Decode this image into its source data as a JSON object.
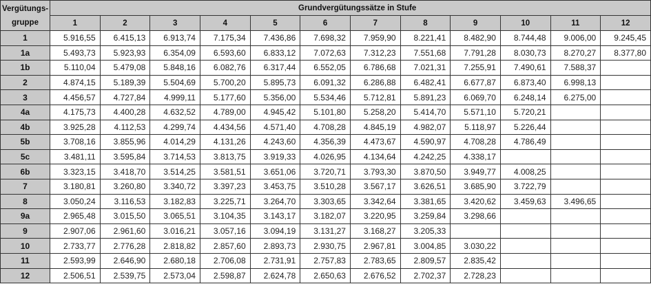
{
  "table": {
    "corner_header": [
      "Vergütungs-",
      "gruppe"
    ],
    "group_header": "Grundvergütungssätze in Stufe",
    "stufen": [
      "1",
      "2",
      "3",
      "4",
      "5",
      "6",
      "7",
      "8",
      "9",
      "10",
      "11",
      "12"
    ],
    "rows": [
      {
        "gruppe": "1",
        "values": [
          "5.916,55",
          "6.415,13",
          "6.913,74",
          "7.175,34",
          "7.436,86",
          "7.698,32",
          "7.959,90",
          "8.221,41",
          "8.482,90",
          "8.744,48",
          "9.006,00",
          "9.245,45"
        ]
      },
      {
        "gruppe": "1a",
        "values": [
          "5.493,73",
          "5.923,93",
          "6.354,09",
          "6.593,60",
          "6.833,12",
          "7.072,63",
          "7.312,23",
          "7.551,68",
          "7.791,28",
          "8.030,73",
          "8.270,27",
          "8.377,80"
        ]
      },
      {
        "gruppe": "1b",
        "values": [
          "5.110,04",
          "5.479,08",
          "5.848,16",
          "6.082,76",
          "6.317,44",
          "6.552,05",
          "6.786,68",
          "7.021,31",
          "7.255,91",
          "7.490,61",
          "7.588,37",
          ""
        ]
      },
      {
        "gruppe": "2",
        "values": [
          "4.874,15",
          "5.189,39",
          "5.504,69",
          "5.700,20",
          "5.895,73",
          "6.091,32",
          "6.286,88",
          "6.482,41",
          "6.677,87",
          "6.873,40",
          "6.998,13",
          ""
        ]
      },
      {
        "gruppe": "3",
        "values": [
          "4.456,57",
          "4.727,84",
          "4.999,11",
          "5.177,60",
          "5.356,00",
          "5.534,46",
          "5.712,81",
          "5.891,23",
          "6.069,70",
          "6.248,14",
          "6.275,00",
          ""
        ]
      },
      {
        "gruppe": "4a",
        "values": [
          "4.175,73",
          "4.400,28",
          "4.632,52",
          "4.789,00",
          "4.945,42",
          "5.101,80",
          "5.258,20",
          "5.414,70",
          "5.571,10",
          "5.720,21",
          "",
          ""
        ]
      },
      {
        "gruppe": "4b",
        "values": [
          "3.925,28",
          "4.112,53",
          "4.299,74",
          "4.434,56",
          "4.571,40",
          "4.708,28",
          "4.845,19",
          "4.982,07",
          "5.118,97",
          "5.226,44",
          "",
          ""
        ]
      },
      {
        "gruppe": "5b",
        "values": [
          "3.708,16",
          "3.855,96",
          "4.014,29",
          "4.131,26",
          "4.243,60",
          "4.356,39",
          "4.473,67",
          "4.590,97",
          "4.708,28",
          "4.786,49",
          "",
          ""
        ]
      },
      {
        "gruppe": "5c",
        "values": [
          "3.481,11",
          "3.595,84",
          "3.714,53",
          "3.813,75",
          "3.919,33",
          "4.026,95",
          "4.134,64",
          "4.242,25",
          "4.338,17",
          "",
          "",
          ""
        ]
      },
      {
        "gruppe": "6b",
        "values": [
          "3.323,15",
          "3.418,70",
          "3.514,25",
          "3.581,51",
          "3.651,06",
          "3.720,71",
          "3.793,30",
          "3.870,50",
          "3.949,77",
          "4.008,25",
          "",
          ""
        ]
      },
      {
        "gruppe": "7",
        "values": [
          "3.180,81",
          "3.260,80",
          "3.340,72",
          "3.397,23",
          "3.453,75",
          "3.510,28",
          "3.567,17",
          "3.626,51",
          "3.685,90",
          "3.722,79",
          "",
          ""
        ]
      },
      {
        "gruppe": "8",
        "values": [
          "3.050,24",
          "3.116,53",
          "3.182,83",
          "3.225,71",
          "3.264,70",
          "3.303,65",
          "3.342,64",
          "3.381,65",
          "3.420,62",
          "3.459,63",
          "3.496,65",
          ""
        ]
      },
      {
        "gruppe": "9a",
        "values": [
          "2.965,48",
          "3.015,50",
          "3.065,51",
          "3.104,35",
          "3.143,17",
          "3.182,07",
          "3.220,95",
          "3.259,84",
          "3.298,66",
          "",
          "",
          ""
        ]
      },
      {
        "gruppe": "9",
        "values": [
          "2.907,06",
          "2.961,60",
          "3.016,21",
          "3.057,16",
          "3.094,19",
          "3.131,27",
          "3.168,27",
          "3.205,33",
          "",
          "",
          "",
          ""
        ]
      },
      {
        "gruppe": "10",
        "values": [
          "2.733,77",
          "2.776,28",
          "2.818,82",
          "2.857,60",
          "2.893,73",
          "2.930,75",
          "2.967,81",
          "3.004,85",
          "3.030,22",
          "",
          "",
          ""
        ]
      },
      {
        "gruppe": "11",
        "values": [
          "2.593,99",
          "2.646,90",
          "2.680,18",
          "2.706,08",
          "2.731,91",
          "2.757,83",
          "2.783,65",
          "2.809,57",
          "2.835,42",
          "",
          "",
          ""
        ]
      },
      {
        "gruppe": "12",
        "values": [
          "2.506,51",
          "2.539,75",
          "2.573,04",
          "2.598,87",
          "2.624,78",
          "2.650,63",
          "2.676,52",
          "2.702,37",
          "2.728,23",
          "",
          "",
          ""
        ]
      }
    ]
  },
  "colors": {
    "header_bg": "#c9c9c9",
    "cell_bg": "#ffffff",
    "border": "#333333"
  }
}
